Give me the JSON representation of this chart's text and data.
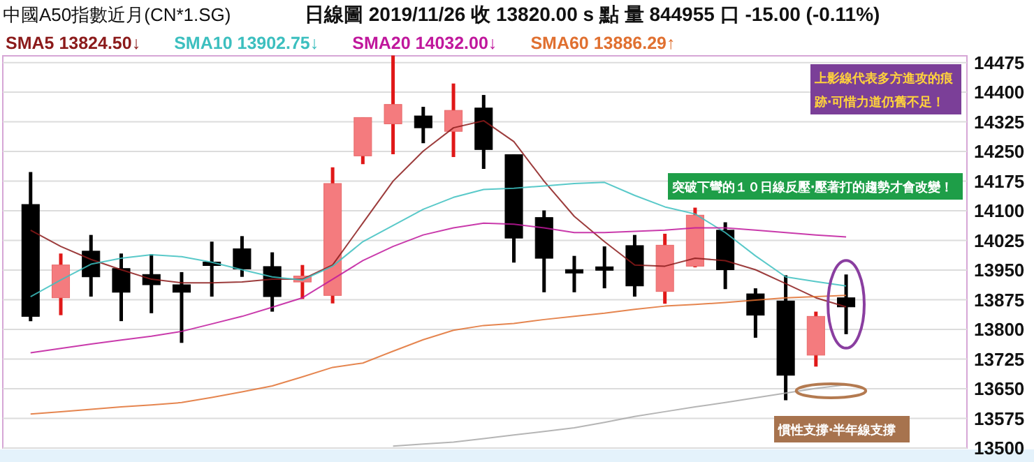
{
  "chart_data": {
    "type": "candlestick",
    "title": "中國A50指數近月(CN*1.SG)",
    "subtitle": "日線圖  2019/11/26  收 13820.00 s 點  量 844955 口  -15.00 (-0.11%)",
    "categories": [
      null,
      null,
      null,
      null,
      null,
      null,
      null,
      null,
      null,
      null,
      null,
      null,
      null,
      null,
      null,
      null,
      null,
      null,
      null,
      null,
      null,
      null,
      null,
      null,
      null,
      null,
      null,
      null
    ],
    "ohlc": [
      [
        14116,
        14198,
        13821,
        13833
      ],
      [
        13880,
        13992,
        13836,
        13963
      ],
      [
        13998,
        14039,
        13883,
        13933
      ],
      [
        13954,
        13992,
        13821,
        13894
      ],
      [
        13939,
        13990,
        13841,
        13913
      ],
      [
        13913,
        13945,
        13766,
        13894
      ],
      [
        13968,
        14022,
        13883,
        13964
      ],
      [
        14004,
        14036,
        13933,
        13953
      ],
      [
        13959,
        13995,
        13845,
        13883
      ],
      [
        13920,
        13963,
        13877,
        13935
      ],
      [
        13886,
        14210,
        13866,
        14169
      ],
      [
        14239,
        14336,
        14218,
        14336
      ],
      [
        14320,
        14493,
        14243,
        14369
      ],
      [
        14340,
        14363,
        14271,
        14310
      ],
      [
        14301,
        14422,
        14236,
        14354
      ],
      [
        14360,
        14393,
        14206,
        14255
      ],
      [
        14242,
        14242,
        13969,
        14031
      ],
      [
        14083,
        14101,
        13894,
        13980
      ],
      [
        13948,
        13986,
        13894,
        13946
      ],
      [
        13956,
        14010,
        13904,
        13952
      ],
      [
        14012,
        14039,
        13883,
        13910
      ],
      [
        13896,
        14042,
        13865,
        14013
      ],
      [
        13960,
        14108,
        13957,
        14089
      ],
      [
        14051,
        14071,
        13902,
        13951
      ],
      [
        13890,
        13904,
        13779,
        13836
      ],
      [
        13872,
        13937,
        13621,
        13684
      ],
      [
        13735,
        13845,
        13706,
        13833
      ],
      [
        13880,
        13939,
        13788,
        13857
      ]
    ],
    "series": [
      {
        "name": "SMA5 13824.50↓",
        "color": "#8b1a1a",
        "type": "line",
        "values": [
          14051,
          14010,
          13977,
          13951,
          13927,
          13918,
          13918,
          13920,
          13927,
          13927,
          13963,
          14069,
          14175,
          14251,
          14310,
          14328,
          14275,
          14175,
          14086,
          14022,
          13963,
          13960,
          13980,
          13974,
          13951,
          13916,
          13880,
          13857
        ]
      },
      {
        "name": "SMA10 13902.75↓",
        "color": "#3cbfbf",
        "type": "line",
        "values": [
          13883,
          13925,
          13965,
          13980,
          13989,
          13984,
          13970,
          13951,
          13933,
          13925,
          13960,
          14022,
          14063,
          14104,
          14134,
          14154,
          14157,
          14163,
          14169,
          14172,
          14139,
          14110,
          14092,
          14045,
          13986,
          13933,
          13921,
          13910
        ]
      },
      {
        "name": "SMA20 14032.00↓",
        "color": "#c0179c",
        "type": "line",
        "values": [
          13741,
          13752,
          13763,
          13773,
          13783,
          13795,
          13814,
          13833,
          13856,
          13880,
          13927,
          13974,
          14010,
          14039,
          14057,
          14069,
          14066,
          14057,
          14045,
          14045,
          14048,
          14051,
          14057,
          14057,
          14051,
          14045,
          14039,
          14034
        ]
      },
      {
        "name": "SMA60 13886.29↑",
        "color": "#e07030",
        "type": "line",
        "values": [
          13586,
          13592,
          13598,
          13604,
          13609,
          13615,
          13628,
          13642,
          13657,
          13680,
          13704,
          13715,
          13745,
          13774,
          13798,
          13810,
          13815,
          13825,
          13833,
          13841,
          13851,
          13859,
          13863,
          13868,
          13874,
          13880,
          13883,
          13886
        ]
      },
      {
        "color": "#a8a8a8",
        "type": "line",
        "values": [
          null,
          null,
          null,
          null,
          null,
          null,
          null,
          null,
          null,
          null,
          null,
          null,
          13505,
          13510,
          13515,
          13524,
          13533,
          13542,
          13551,
          13565,
          13580,
          13592,
          13604,
          13615,
          13627,
          13639,
          13651,
          13660
        ]
      }
    ],
    "ylim": [
      13500,
      14492
    ],
    "yticks": [
      13500,
      13575,
      13650,
      13725,
      13800,
      13875,
      13950,
      14025,
      14100,
      14175,
      14250,
      14325,
      14400,
      14475
    ],
    "grid": "y",
    "legend": "top",
    "tick_labels": "y",
    "annotations": [
      "突破下彎的１０日線反壓‧壓著打的趨勢才會改變！",
      "上影線代表多方進攻的痕跡‧可惜力道仍舊不足！",
      "慣性支撐‧半年線支撐"
    ]
  }
}
